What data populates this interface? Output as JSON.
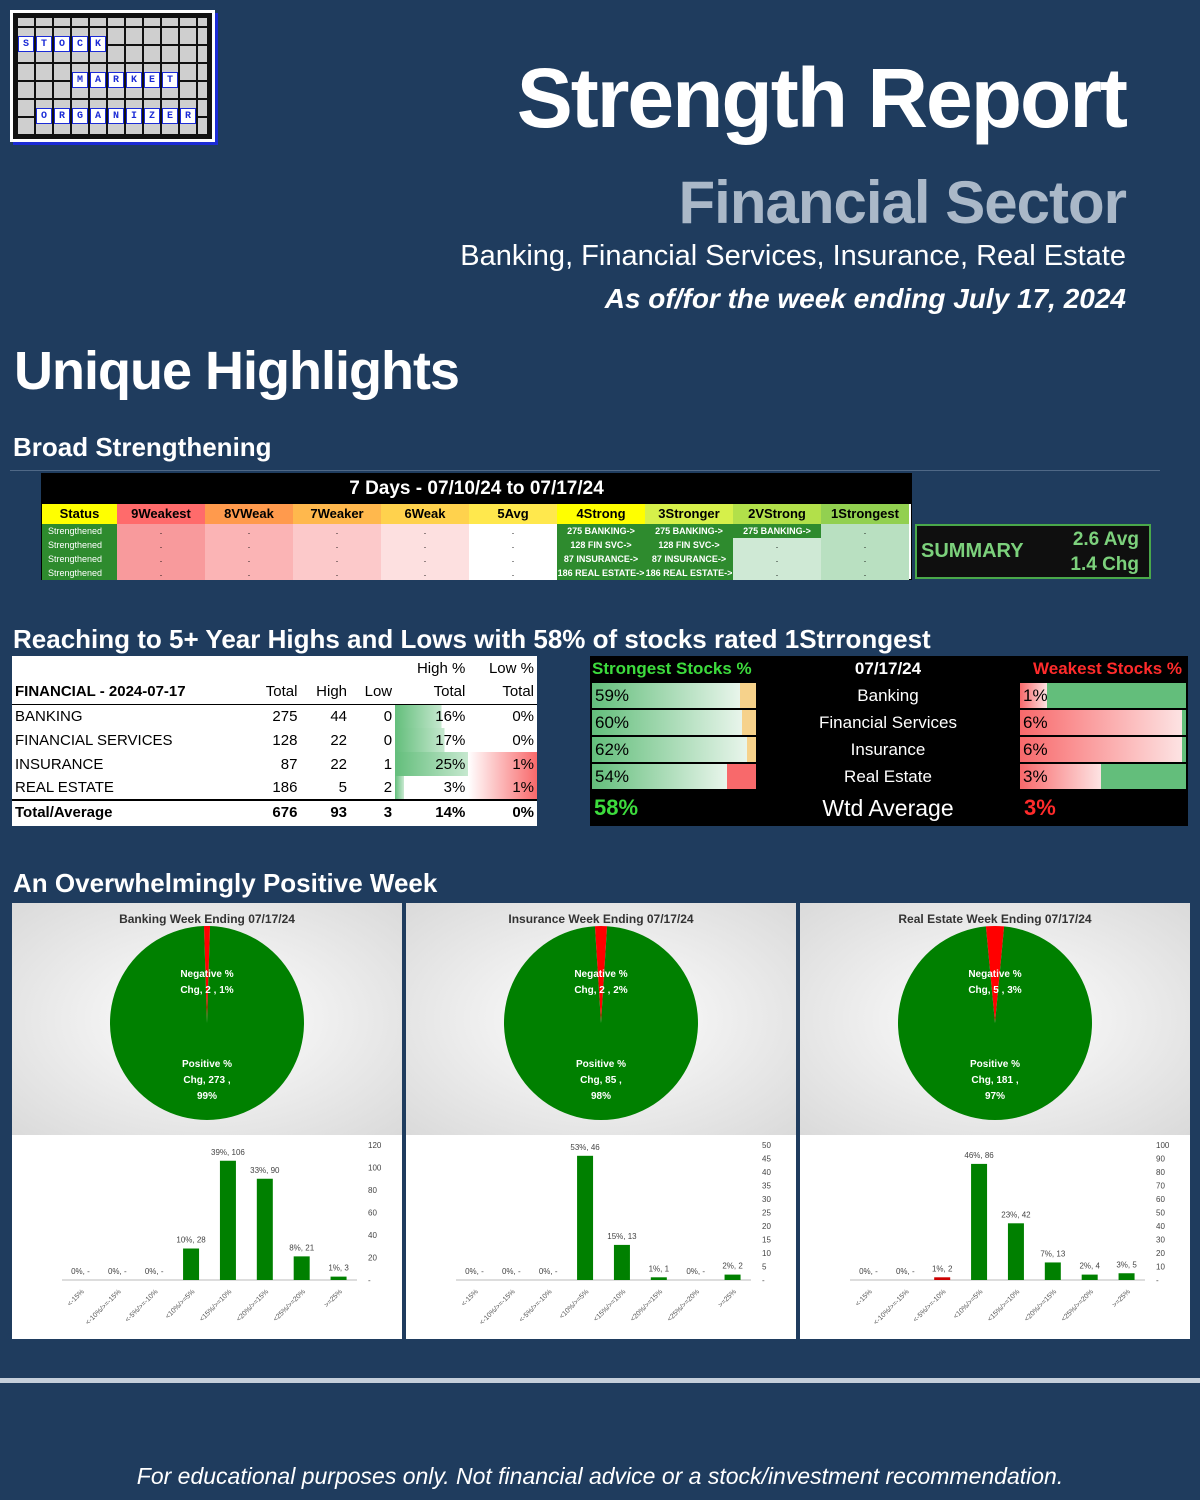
{
  "logo": {
    "row1": [
      "S",
      "T",
      "O",
      "C",
      "K"
    ],
    "row2": [
      "M",
      "A",
      "R",
      "K",
      "E",
      "T"
    ],
    "row3": [
      "O",
      "R",
      "G",
      "A",
      "N",
      "I",
      "Z",
      "E",
      "R"
    ]
  },
  "header": {
    "title": "Strength Report",
    "subtitle": "Financial Sector",
    "industries": "Banking, Financial Services, Insurance, Real Estate",
    "asof": "As of/for the week ending July 17, 2024"
  },
  "section_title": "Unique Highlights",
  "broad": {
    "heading": "Broad Strengthening",
    "band": "7 Days - 07/10/24 to 07/17/24",
    "columns": [
      "Status",
      "9Weakest",
      "8VWeak",
      "7Weaker",
      "6Weak",
      "5Avg",
      "4Strong",
      "3Stronger",
      "2VStrong",
      "1Strongest"
    ],
    "rows": [
      {
        "status": "Strengthened",
        "cells": [
          ".",
          ".",
          ".",
          ".",
          ".",
          "275 BANKING->",
          "275 BANKING->",
          "275 BANKING->",
          "."
        ]
      },
      {
        "status": "Strengthened",
        "cells": [
          ".",
          ".",
          ".",
          ".",
          ".",
          "128 FIN SVC->",
          "128 FIN SVC->",
          ".",
          "."
        ]
      },
      {
        "status": "Strengthened",
        "cells": [
          ".",
          ".",
          ".",
          ".",
          ".",
          "87 INSURANCE->",
          "87 INSURANCE->",
          ".",
          "."
        ]
      },
      {
        "status": "Strengthened",
        "cells": [
          ".",
          ".",
          ".",
          ".",
          ".",
          "186 REAL ESTATE->",
          "186 REAL ESTATE->",
          ".",
          "."
        ]
      }
    ],
    "summary_label": "SUMMARY",
    "summary_avg": "2.6 Avg",
    "summary_chg": "1.4 Chg",
    "colors": {
      "weak": "#f8696b",
      "strong": "#63be7b",
      "header_yellow": "#ffff00",
      "header_green": "#92d050"
    }
  },
  "highs": {
    "heading": "Reaching to 5+ Year Highs and Lows with 58% of stocks rated 1Strrongest",
    "title": "FINANCIAL - 2024-07-17",
    "col_high_pct_top": "High %",
    "col_low_pct_top": "Low %",
    "cols": [
      "Total",
      "High",
      "Low",
      "Total",
      "Total"
    ],
    "rows": [
      {
        "name": "BANKING",
        "total": "275",
        "high": "44",
        "low": "0",
        "high_pct": "16%",
        "low_pct": "0%",
        "hv": 0.16,
        "lv": 0
      },
      {
        "name": "FINANCIAL SERVICES",
        "total": "128",
        "high": "22",
        "low": "0",
        "high_pct": "17%",
        "low_pct": "0%",
        "hv": 0.17,
        "lv": 0
      },
      {
        "name": "INSURANCE",
        "total": "87",
        "high": "22",
        "low": "1",
        "high_pct": "25%",
        "low_pct": "1%",
        "hv": 0.25,
        "lv": 0.01
      },
      {
        "name": "REAL ESTATE",
        "total": "186",
        "high": "5",
        "low": "2",
        "high_pct": "3%",
        "low_pct": "1%",
        "hv": 0.03,
        "lv": 0.01
      }
    ],
    "total": {
      "name": "Total/Average",
      "total": "676",
      "high": "93",
      "low": "3",
      "high_pct": "14%",
      "low_pct": "0%"
    }
  },
  "strongweak": {
    "strong_header": "Strongest Stocks %",
    "date": "07/17/24",
    "weak_header": "Weakest Stocks %",
    "rows": [
      {
        "name": "Banking",
        "strong": "59%",
        "sv": 0.59,
        "weak": "1%",
        "wv": 0.01
      },
      {
        "name": "Financial Services",
        "strong": "60%",
        "sv": 0.6,
        "weak": "6%",
        "wv": 0.06
      },
      {
        "name": "Insurance",
        "strong": "62%",
        "sv": 0.62,
        "weak": "6%",
        "wv": 0.06
      },
      {
        "name": "Real Estate",
        "strong": "54%",
        "sv": 0.54,
        "weak": "3%",
        "wv": 0.03
      }
    ],
    "avg_label": "Wtd Average",
    "avg_strong": "58%",
    "avg_weak": "3%"
  },
  "week_heading": "An Overwhelmingly Positive Week",
  "chart_data": [
    {
      "type": "pie",
      "title": "Banking Week Ending 07/17/24",
      "slices": [
        {
          "label": "Negative % Chg",
          "count": 2,
          "pct": "1%",
          "value": 0.01,
          "color": "#ff0000"
        },
        {
          "label": "Positive % Chg",
          "count": 273,
          "pct": "99%",
          "value": 0.99,
          "color": "#008000"
        }
      ],
      "neg_label": [
        "Negative %",
        "Chg,  2 , 1%"
      ],
      "pos_label": [
        "Positive %",
        "Chg,  273 ,",
        "99%"
      ]
    },
    {
      "type": "pie",
      "title": "Insurance Week Ending 07/17/24",
      "slices": [
        {
          "label": "Negative % Chg",
          "count": 2,
          "pct": "2%",
          "value": 0.02,
          "color": "#ff0000"
        },
        {
          "label": "Positive % Chg",
          "count": 85,
          "pct": "98%",
          "value": 0.98,
          "color": "#008000"
        }
      ],
      "neg_label": [
        "Negative %",
        "Chg,  2 , 2%"
      ],
      "pos_label": [
        "Positive %",
        "Chg,  85 ,",
        "98%"
      ]
    },
    {
      "type": "pie",
      "title": "Real Estate Week Ending 07/17/24",
      "slices": [
        {
          "label": "Negative % Chg",
          "count": 5,
          "pct": "3%",
          "value": 0.03,
          "color": "#ff0000"
        },
        {
          "label": "Positive % Chg",
          "count": 181,
          "pct": "97%",
          "value": 0.97,
          "color": "#008000"
        }
      ],
      "neg_label": [
        "Negative %",
        "Chg,  5 , 3%"
      ],
      "pos_label": [
        "Positive %",
        "Chg,  181 ,",
        "97%"
      ]
    },
    {
      "type": "bar",
      "title": "Banking distribution",
      "categories": [
        "<-15%",
        "<-10%/>=-15%",
        "<-5%/>=-10%",
        "<10%/>=5%",
        "<15%/>=10%",
        "<20%/>=15%",
        "<25%/>=20%",
        ">=25%"
      ],
      "values": [
        0,
        0,
        0,
        28,
        106,
        90,
        21,
        3
      ],
      "labels": [
        "0%, -",
        "0%, -",
        "0%, -",
        "10%, 28",
        "39%, 106",
        "33%, 90",
        "8%, 21",
        "1%, 3"
      ],
      "colors": [
        "#008000",
        "#008000",
        "#008000",
        "#008000",
        "#008000",
        "#008000",
        "#008000",
        "#008000"
      ],
      "ylim": [
        0,
        120
      ],
      "yticks": [
        "-",
        "20",
        "40",
        "60",
        "80",
        "100",
        "120"
      ]
    },
    {
      "type": "bar",
      "title": "Insurance distribution",
      "categories": [
        "<-15%",
        "<-10%/>=-15%",
        "<-5%/>=-10%",
        "<10%/>=5%",
        "<15%/>=10%",
        "<20%/>=15%",
        "<25%/>=20%",
        ">=25%"
      ],
      "values": [
        0,
        0,
        0,
        46,
        13,
        1,
        0,
        2
      ],
      "labels": [
        "0%, -",
        "0%, -",
        "0%, -",
        "53%, 46",
        "15%, 13",
        "1%, 1",
        "0%, -",
        "2%, 2"
      ],
      "colors": [
        "#008000",
        "#008000",
        "#008000",
        "#008000",
        "#008000",
        "#008000",
        "#008000",
        "#008000"
      ],
      "ylim": [
        0,
        50
      ],
      "yticks": [
        "-",
        "5",
        "10",
        "15",
        "20",
        "25",
        "30",
        "35",
        "40",
        "45",
        "50"
      ]
    },
    {
      "type": "bar",
      "title": "Real Estate distribution",
      "categories": [
        "<-15%",
        "<-10%/>=-15%",
        "<-5%/>=-10%",
        "<10%/>=5%",
        "<15%/>=10%",
        "<20%/>=15%",
        "<25%/>=20%",
        ">=25%"
      ],
      "values": [
        0,
        0,
        2,
        86,
        42,
        13,
        4,
        5
      ],
      "labels": [
        "0%, -",
        "0%, -",
        "1%, 2",
        "46%, 86",
        "23%, 42",
        "7%, 13",
        "2%, 4",
        "3%, 5"
      ],
      "colors": [
        "#008000",
        "#008000",
        "#cc0000",
        "#008000",
        "#008000",
        "#008000",
        "#008000",
        "#008000"
      ],
      "ylim": [
        0,
        100
      ],
      "yticks": [
        "-",
        "10",
        "20",
        "30",
        "40",
        "50",
        "60",
        "70",
        "80",
        "90",
        "100"
      ]
    }
  ],
  "disclaimer": "For educational purposes only. Not financial advice or a stock/investment recommendation."
}
